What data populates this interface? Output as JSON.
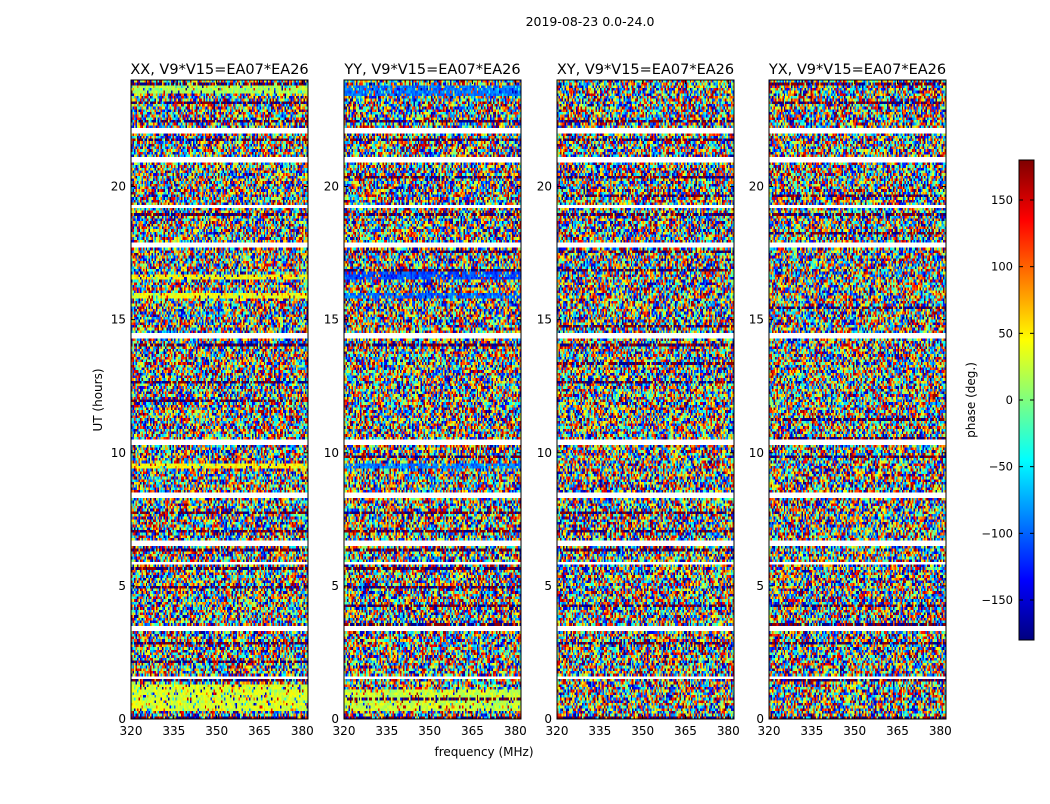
{
  "figure": {
    "suptitle": "2019-08-23 0.0-24.0",
    "ylabel": "UT (hours)",
    "xlabel": "frequency (MHz)",
    "colorbar_label": "phase (deg.)",
    "colorbar_ticks": [
      150,
      100,
      50,
      0,
      -50,
      -100,
      -150
    ],
    "colorbar_ticklabels": [
      "150",
      "100",
      "50",
      "0",
      "−50",
      "−100",
      "−150"
    ],
    "colormap": [
      "#00007f",
      "#0000ff",
      "#007fff",
      "#00ffff",
      "#7fff7f",
      "#ffff00",
      "#ff7f00",
      "#ff0000",
      "#7f0000"
    ]
  },
  "chart_data": [
    {
      "type": "heatmap",
      "title": "XX, V9*V15=EA07*EA26",
      "xlim": [
        320,
        382
      ],
      "ylim": [
        0,
        24
      ],
      "clim": [
        -180,
        180
      ],
      "xticks": [
        320,
        335,
        350,
        365,
        380
      ],
      "yticks": [
        0,
        5,
        10,
        15,
        20
      ],
      "bands": [
        {
          "ut_start": 0.3,
          "ut_end": 1.3,
          "phase": 30
        },
        {
          "ut_start": 9.35,
          "ut_end": 9.6,
          "phase": 45
        },
        {
          "ut_start": 15.8,
          "ut_end": 16.0,
          "phase": 40
        },
        {
          "ut_start": 16.55,
          "ut_end": 16.7,
          "phase": 45
        },
        {
          "ut_start": 23.5,
          "ut_end": 23.8,
          "phase": 15
        }
      ]
    },
    {
      "type": "heatmap",
      "title": "YY, V9*V15=EA07*EA26",
      "xlim": [
        320,
        382
      ],
      "ylim": [
        0,
        24
      ],
      "clim": [
        -180,
        180
      ],
      "xticks": [
        320,
        335,
        350,
        365,
        380
      ],
      "yticks": [
        0,
        5,
        10,
        15,
        20
      ],
      "bands": [
        {
          "ut_start": 0.3,
          "ut_end": 1.1,
          "phase": 25
        },
        {
          "ut_start": 9.35,
          "ut_end": 9.6,
          "phase": -90
        },
        {
          "ut_start": 15.8,
          "ut_end": 16.0,
          "phase": -100
        },
        {
          "ut_start": 16.55,
          "ut_end": 16.8,
          "phase": -110
        },
        {
          "ut_start": 23.4,
          "ut_end": 23.8,
          "phase": -95
        }
      ]
    },
    {
      "type": "heatmap",
      "title": "XY, V9*V15=EA07*EA26",
      "xlim": [
        320,
        382
      ],
      "ylim": [
        0,
        24
      ],
      "clim": [
        -180,
        180
      ],
      "xticks": [
        320,
        335,
        350,
        365,
        380
      ],
      "yticks": [
        0,
        5,
        10,
        15,
        20
      ],
      "bands": []
    },
    {
      "type": "heatmap",
      "title": "YX, V9*V15=EA07*EA26",
      "xlim": [
        320,
        382
      ],
      "ylim": [
        0,
        24
      ],
      "clim": [
        -180,
        180
      ],
      "xticks": [
        320,
        335,
        350,
        365,
        380
      ],
      "yticks": [
        0,
        5,
        10,
        15,
        20
      ],
      "bands": []
    }
  ],
  "flagged_ut_hours": [
    1.55,
    3.4,
    5.85,
    6.6,
    8.4,
    10.4,
    14.4,
    17.8,
    19.25,
    21.0,
    22.1
  ]
}
